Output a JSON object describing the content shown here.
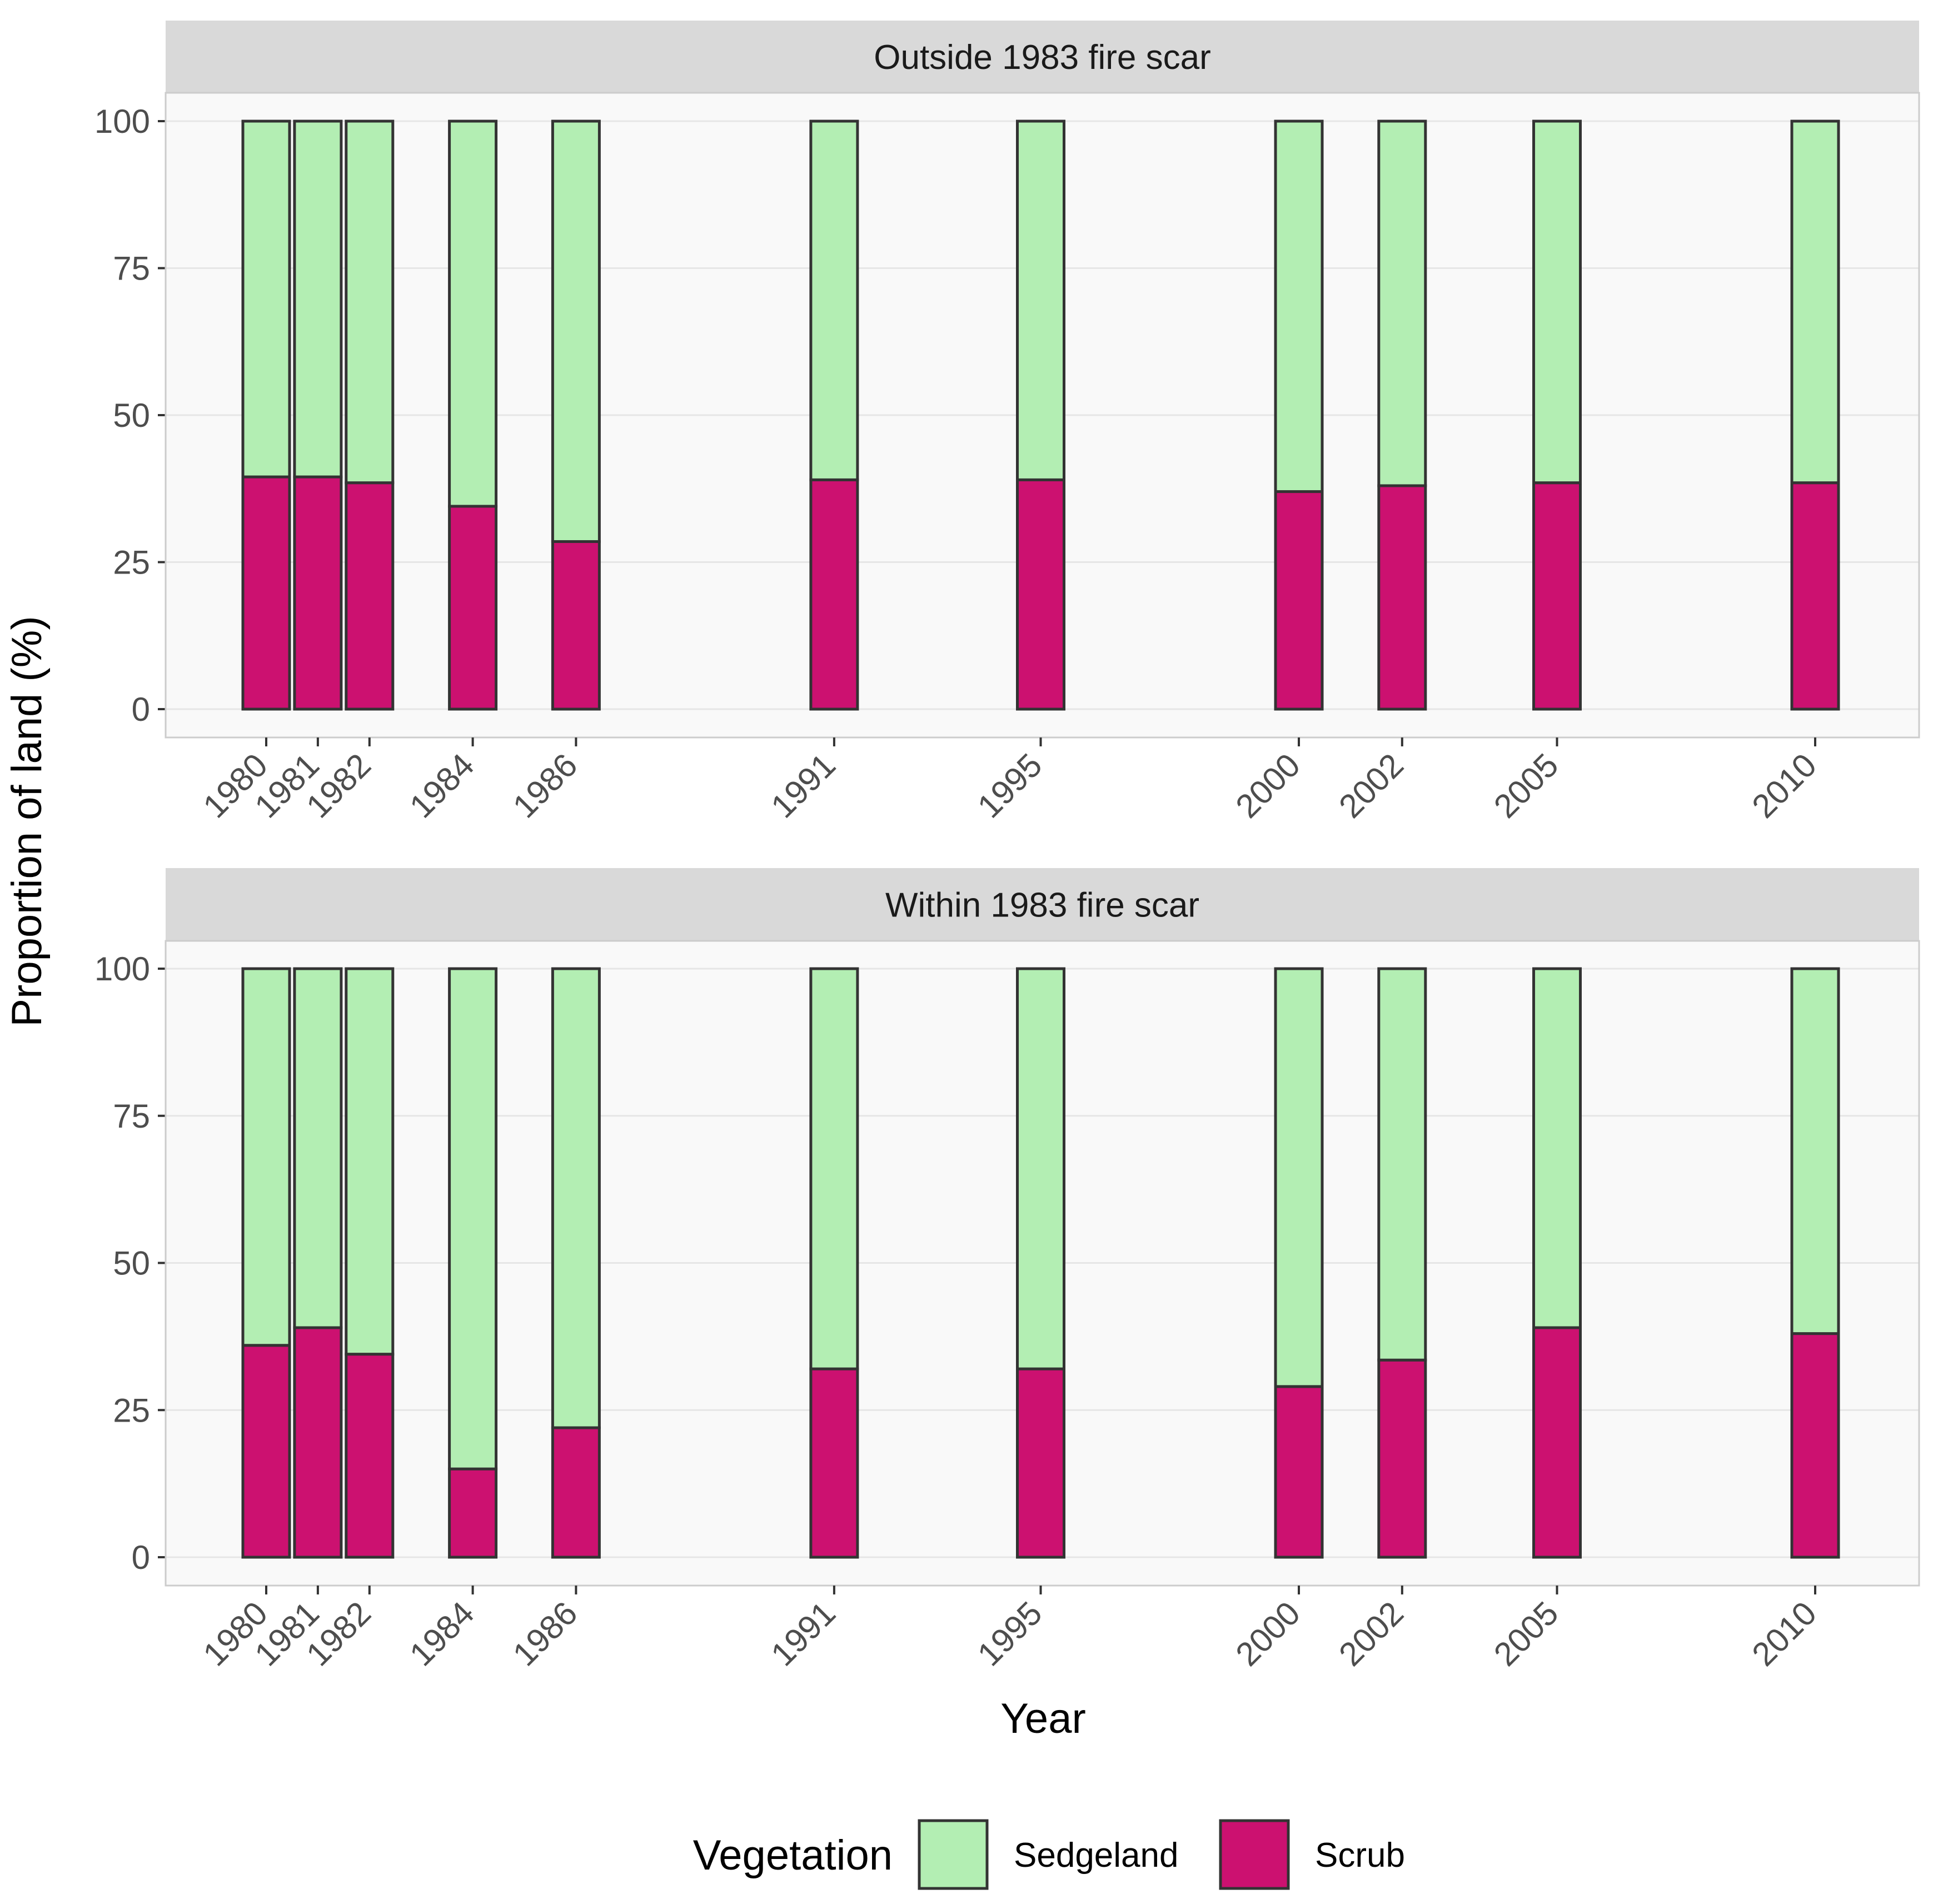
{
  "chart_data": {
    "type": "bar",
    "stacked": true,
    "percent": true,
    "facets": [
      {
        "title": "Outside 1983 fire scar",
        "x": [
          1980,
          1981,
          1982,
          1984,
          1986,
          1991,
          1995,
          2000,
          2002,
          2005,
          2010
        ],
        "series": [
          {
            "name": "Scrub",
            "values": [
              39.5,
              39.5,
              38.5,
              34.5,
              28.5,
              39,
              39,
              37,
              38,
              38.5,
              38.5
            ]
          },
          {
            "name": "Sedgeland",
            "values": [
              60.5,
              60.5,
              61.5,
              65.5,
              71.5,
              61,
              61,
              63,
              62,
              61.5,
              61.5
            ]
          }
        ]
      },
      {
        "title": "Within 1983 fire scar",
        "x": [
          1980,
          1981,
          1982,
          1984,
          1986,
          1991,
          1995,
          2000,
          2002,
          2005,
          2010
        ],
        "series": [
          {
            "name": "Scrub",
            "values": [
              36,
              39,
              34.5,
              15,
              22,
              32,
              32,
              29,
              33.5,
              39,
              38
            ]
          },
          {
            "name": "Sedgeland",
            "values": [
              64,
              61,
              65.5,
              85,
              78,
              68,
              68,
              71,
              66.5,
              61,
              62
            ]
          }
        ]
      }
    ],
    "x_ticks": [
      "1980",
      "1981",
      "1982",
      "1984",
      "1986",
      "1991",
      "1995",
      "2000",
      "2002",
      "2005",
      "2010"
    ],
    "y_ticks": [
      "0",
      "25",
      "50",
      "75",
      "100"
    ],
    "ylim": [
      0,
      100
    ],
    "xlabel": "Year",
    "ylabel": "Proportion of land (%)",
    "legend": {
      "title": "Vegetation",
      "position": "bottom",
      "items": [
        {
          "name": "Sedgeland",
          "color": "#b3eeb3"
        },
        {
          "name": "Scrub",
          "color": "#cc1170"
        }
      ]
    },
    "colors": {
      "Sedgeland": "#b3eeb3",
      "Scrub": "#cc1170",
      "bar_outline": "#333333",
      "panel_bg": "#f9f9f9",
      "strip_bg": "#d9d9d9",
      "grid": "#e6e6e6"
    }
  }
}
